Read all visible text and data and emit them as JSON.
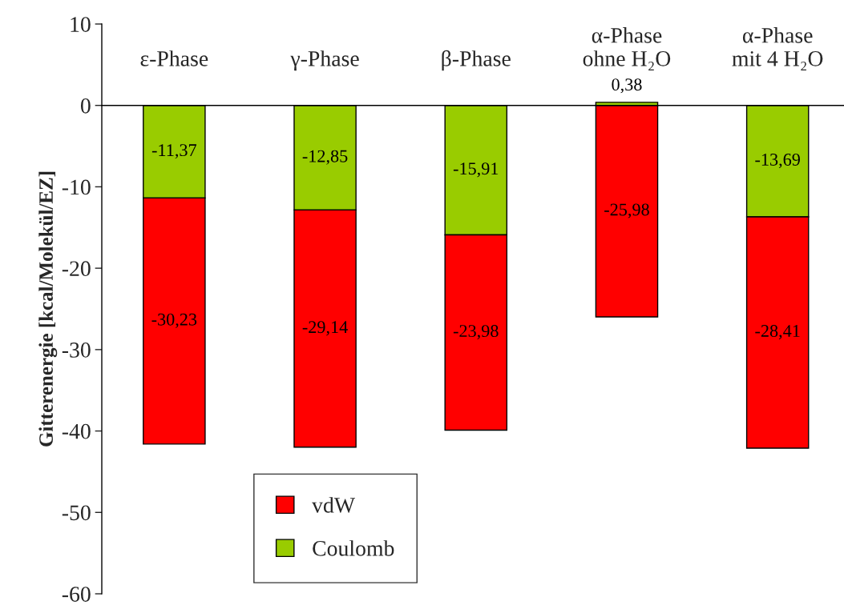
{
  "chart_data": {
    "type": "bar",
    "stacked": true,
    "ylabel": "Gitterenergie [kcal/Molekül/EZ]",
    "categories": [
      "ε-Phase",
      "γ-Phase",
      "β-Phase",
      "α-Phase\nohne H₂O",
      "α-Phase\nmit 4 H₂O"
    ],
    "series": [
      {
        "name": "Coulomb",
        "color": "#99cc00",
        "values": [
          -11.37,
          -12.85,
          -15.91,
          0.38,
          -13.69
        ],
        "value_labels": [
          "-11,37",
          "-12,85",
          "-15,91",
          "0,38",
          "-13,69"
        ]
      },
      {
        "name": "vdW",
        "color": "#ff0000",
        "values": [
          -30.23,
          -29.14,
          -23.98,
          -25.98,
          -28.41
        ],
        "value_labels": [
          "-30,23",
          "-29,14",
          "-23,98",
          "-25,98",
          "-28,41"
        ]
      }
    ],
    "ylim": [
      -60,
      10
    ],
    "yticks": [
      -60,
      -50,
      -40,
      -30,
      -20,
      -10,
      0,
      10
    ],
    "grid": false,
    "legend": "bottom left"
  }
}
